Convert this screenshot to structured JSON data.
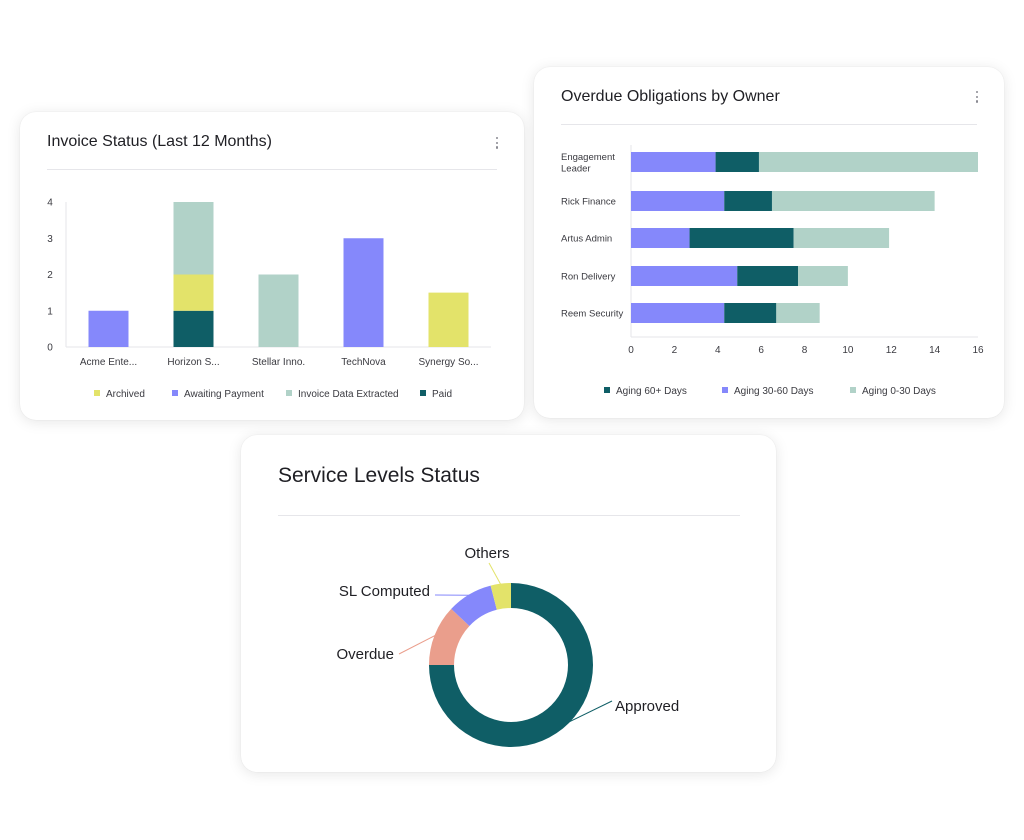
{
  "invoice_card": {
    "title": "Invoice Status (Last 12 Months)"
  },
  "overdue_card": {
    "title": "Overdue Obligations by Owner"
  },
  "service_card": {
    "title": "Service Levels Status"
  },
  "colors": {
    "archived": "#e3e36a",
    "awaiting_payment": "#8588fb",
    "invoice_data_extracted": "#b1d2c8",
    "paid": "#0f5e66",
    "aging_60_plus": "#0f5e66",
    "aging_30_60": "#8588fb",
    "aging_0_30": "#b1d2c8",
    "approved": "#0f5e66",
    "overdue": "#ea9e8c",
    "sl_computed": "#8588fb",
    "others": "#e3e36a"
  },
  "chart_data": [
    {
      "type": "bar",
      "stacked": true,
      "orientation": "vertical",
      "title": "Invoice Status (Last 12 Months)",
      "categories": [
        "Acme Ente...",
        "Horizon S...",
        "Stellar Inno.",
        "TechNova",
        "Synergy So..."
      ],
      "yticks": [
        "0",
        "1",
        "2",
        "3",
        "4"
      ],
      "ylim": [
        0,
        4
      ],
      "series": [
        {
          "name": "Paid",
          "color": "#0f5e66",
          "values": [
            0,
            1,
            0,
            0,
            0
          ]
        },
        {
          "name": "Archived",
          "color": "#e3e36a",
          "values": [
            0,
            1,
            0,
            0,
            1.5
          ]
        },
        {
          "name": "Awaiting Payment",
          "color": "#8588fb",
          "values": [
            1,
            0,
            0,
            3,
            0
          ]
        },
        {
          "name": "Invoice Data Extracted",
          "color": "#b1d2c8",
          "values": [
            0,
            2,
            2,
            0,
            0
          ]
        }
      ],
      "legend": [
        "Archived",
        "Awaiting Payment",
        "Invoice Data Extracted",
        "Paid"
      ],
      "legend_colors": [
        "#e3e36a",
        "#8588fb",
        "#b1d2c8",
        "#0f5e66"
      ],
      "legend_position": "bottom"
    },
    {
      "type": "bar",
      "stacked": true,
      "orientation": "horizontal",
      "title": "Overdue Obligations by Owner",
      "categories": [
        "Engagement Leader",
        "Rick Finance",
        "Artus Admin",
        "Ron Delivery",
        "Reem Security"
      ],
      "category_lines": [
        [
          "Engagement",
          "Leader"
        ],
        [
          "Rick Finance"
        ],
        [
          "Artus Admin"
        ],
        [
          "Ron Delivery"
        ],
        [
          "Reem Security"
        ]
      ],
      "xticks": [
        "0",
        "2",
        "4",
        "6",
        "8",
        "10",
        "12",
        "14",
        "16"
      ],
      "xlim": [
        0,
        16
      ],
      "series": [
        {
          "name": "Aging 30-60 Days",
          "color": "#8588fb",
          "values": [
            3.9,
            4.3,
            2.7,
            4.9,
            4.3
          ]
        },
        {
          "name": "Aging 60+ Days",
          "color": "#0f5e66",
          "values": [
            2.0,
            2.2,
            4.8,
            2.8,
            2.4
          ]
        },
        {
          "name": "Aging 0-30 Days",
          "color": "#b1d2c8",
          "values": [
            10.1,
            7.5,
            4.4,
            2.3,
            2.0
          ]
        }
      ],
      "legend": [
        "Aging 60+ Days",
        "Aging 30-60 Days",
        "Aging 0-30 Days"
      ],
      "legend_colors": [
        "#0f5e66",
        "#8588fb",
        "#b1d2c8"
      ],
      "legend_position": "bottom"
    },
    {
      "type": "pie",
      "donut": true,
      "title": "Service Levels Status",
      "slices": [
        {
          "label": "Approved",
          "value": 75,
          "color": "#0f5e66"
        },
        {
          "label": "Overdue",
          "value": 12,
          "color": "#ea9e8c"
        },
        {
          "label": "SL Computed",
          "value": 9,
          "color": "#8588fb"
        },
        {
          "label": "Others",
          "value": 4,
          "color": "#e3e36a"
        }
      ]
    }
  ]
}
